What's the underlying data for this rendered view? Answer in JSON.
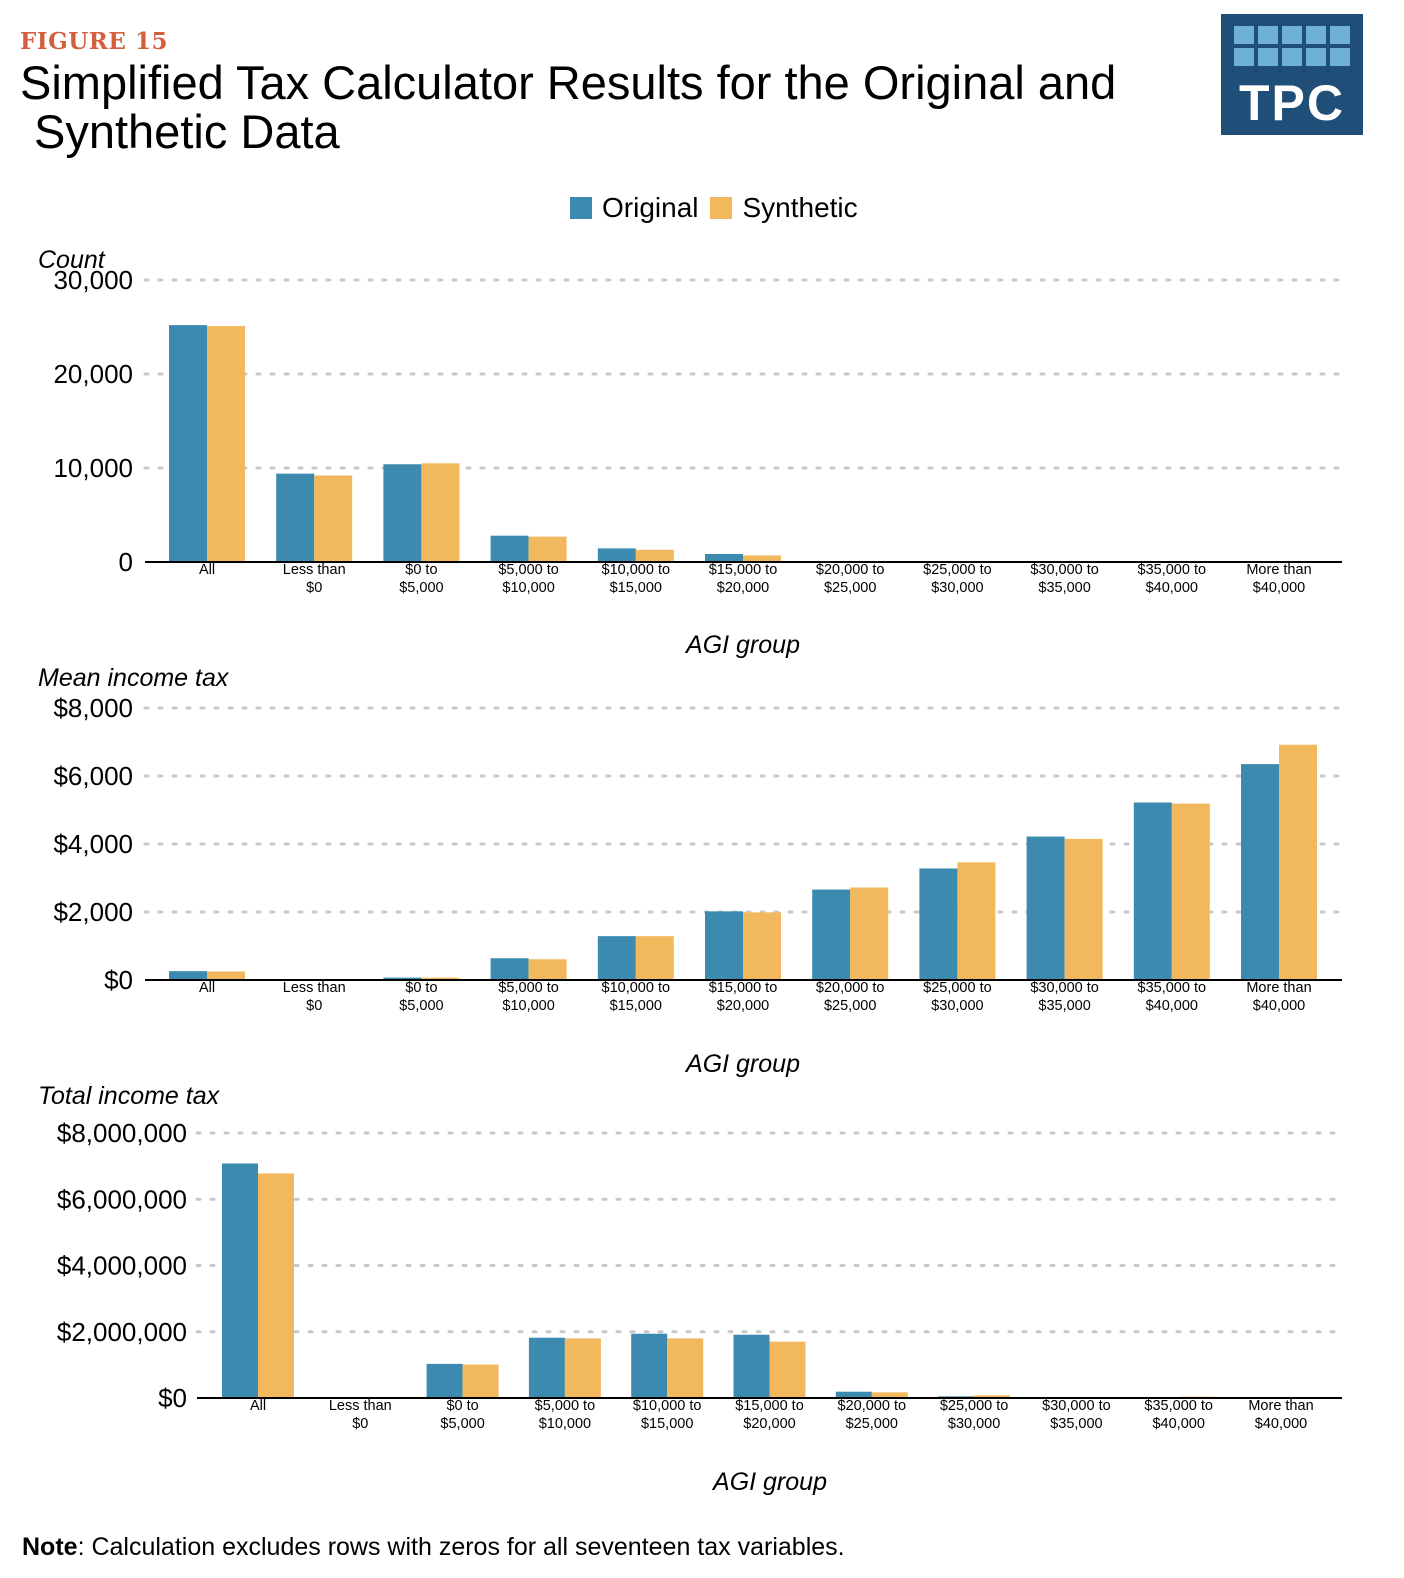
{
  "figure_label": "FIGURE 15",
  "title_line1": "Simplified Tax Calculator Results for the Original and",
  "title_line2": "Synthetic Data",
  "logo_text": "TPC",
  "note_label": "Note",
  "note_text": ": Calculation excludes rows with zeros for all seventeen tax variables.",
  "colors": {
    "original": "#3d8ab0",
    "synthetic": "#f2b85d",
    "accent": "#d45f3c",
    "logo_bg": "#1f4e79"
  },
  "legend": [
    "Original",
    "Synthetic"
  ],
  "chart_data": [
    {
      "type": "bar",
      "ylabel": "Count",
      "xlabel": "AGI group",
      "ylim": [
        0,
        30000
      ],
      "yticks": [
        0,
        10000,
        20000,
        30000
      ],
      "ytick_labels": [
        "0",
        "10,000",
        "20,000",
        "30,000"
      ],
      "grid": "dotted horizontal",
      "categories": [
        [
          "All"
        ],
        [
          "Less than",
          "$0"
        ],
        [
          "$0 to",
          "$5,000"
        ],
        [
          "$5,000 to",
          "$10,000"
        ],
        [
          "$10,000 to",
          "$15,000"
        ],
        [
          "$15,000 to",
          "$20,000"
        ],
        [
          "$20,000 to",
          "$25,000"
        ],
        [
          "$25,000 to",
          "$30,000"
        ],
        [
          "$30,000 to",
          "$35,000"
        ],
        [
          "$35,000 to",
          "$40,000"
        ],
        [
          "More than",
          "$40,000"
        ]
      ],
      "series": [
        {
          "name": "Original",
          "values": [
            25200,
            9400,
            10400,
            2800,
            1450,
            850,
            0,
            0,
            0,
            0,
            0
          ]
        },
        {
          "name": "Synthetic",
          "values": [
            25100,
            9200,
            10500,
            2700,
            1300,
            700,
            0,
            0,
            0,
            0,
            0
          ]
        }
      ]
    },
    {
      "type": "bar",
      "ylabel": "Mean income tax",
      "xlabel": "AGI group",
      "ylim": [
        0,
        8000
      ],
      "yticks": [
        0,
        2000,
        4000,
        6000,
        8000
      ],
      "ytick_labels": [
        "$0",
        "$2,000",
        "$4,000",
        "$6,000",
        "$8,000"
      ],
      "grid": "dotted horizontal",
      "categories": [
        [
          "All"
        ],
        [
          "Less than",
          "$0"
        ],
        [
          "$0 to",
          "$5,000"
        ],
        [
          "$5,000 to",
          "$10,000"
        ],
        [
          "$10,000 to",
          "$15,000"
        ],
        [
          "$15,000 to",
          "$20,000"
        ],
        [
          "$20,000 to",
          "$25,000"
        ],
        [
          "$25,000 to",
          "$30,000"
        ],
        [
          "$30,000 to",
          "$35,000"
        ],
        [
          "$35,000 to",
          "$40,000"
        ],
        [
          "More than",
          "$40,000"
        ]
      ],
      "series": [
        {
          "name": "Original",
          "values": [
            260,
            0,
            70,
            640,
            1290,
            2020,
            2660,
            3280,
            4220,
            5220,
            6350
          ]
        },
        {
          "name": "Synthetic",
          "values": [
            250,
            0,
            70,
            610,
            1290,
            1990,
            2720,
            3460,
            4150,
            5190,
            6920
          ]
        }
      ]
    },
    {
      "type": "bar",
      "ylabel": "Total income tax",
      "xlabel": "AGI group",
      "ylim": [
        0,
        8000000
      ],
      "yticks": [
        0,
        2000000,
        4000000,
        6000000,
        8000000
      ],
      "ytick_labels": [
        "$0",
        "$2,000,000",
        "$4,000,000",
        "$6,000,000",
        "$8,000,000"
      ],
      "grid": "dotted horizontal",
      "categories": [
        [
          "All"
        ],
        [
          "Less than",
          "$0"
        ],
        [
          "$0 to",
          "$5,000"
        ],
        [
          "$5,000 to",
          "$10,000"
        ],
        [
          "$10,000 to",
          "$15,000"
        ],
        [
          "$15,000 to",
          "$20,000"
        ],
        [
          "$20,000 to",
          "$25,000"
        ],
        [
          "$25,000 to",
          "$30,000"
        ],
        [
          "$30,000 to",
          "$35,000"
        ],
        [
          "$35,000 to",
          "$40,000"
        ],
        [
          "More than",
          "$40,000"
        ]
      ],
      "series": [
        {
          "name": "Original",
          "values": [
            7080000,
            0,
            1030000,
            1820000,
            1940000,
            1910000,
            190000,
            50000,
            0,
            0,
            0
          ]
        },
        {
          "name": "Synthetic",
          "values": [
            6780000,
            0,
            1010000,
            1800000,
            1800000,
            1700000,
            170000,
            80000,
            0,
            40000,
            0
          ]
        }
      ]
    }
  ]
}
